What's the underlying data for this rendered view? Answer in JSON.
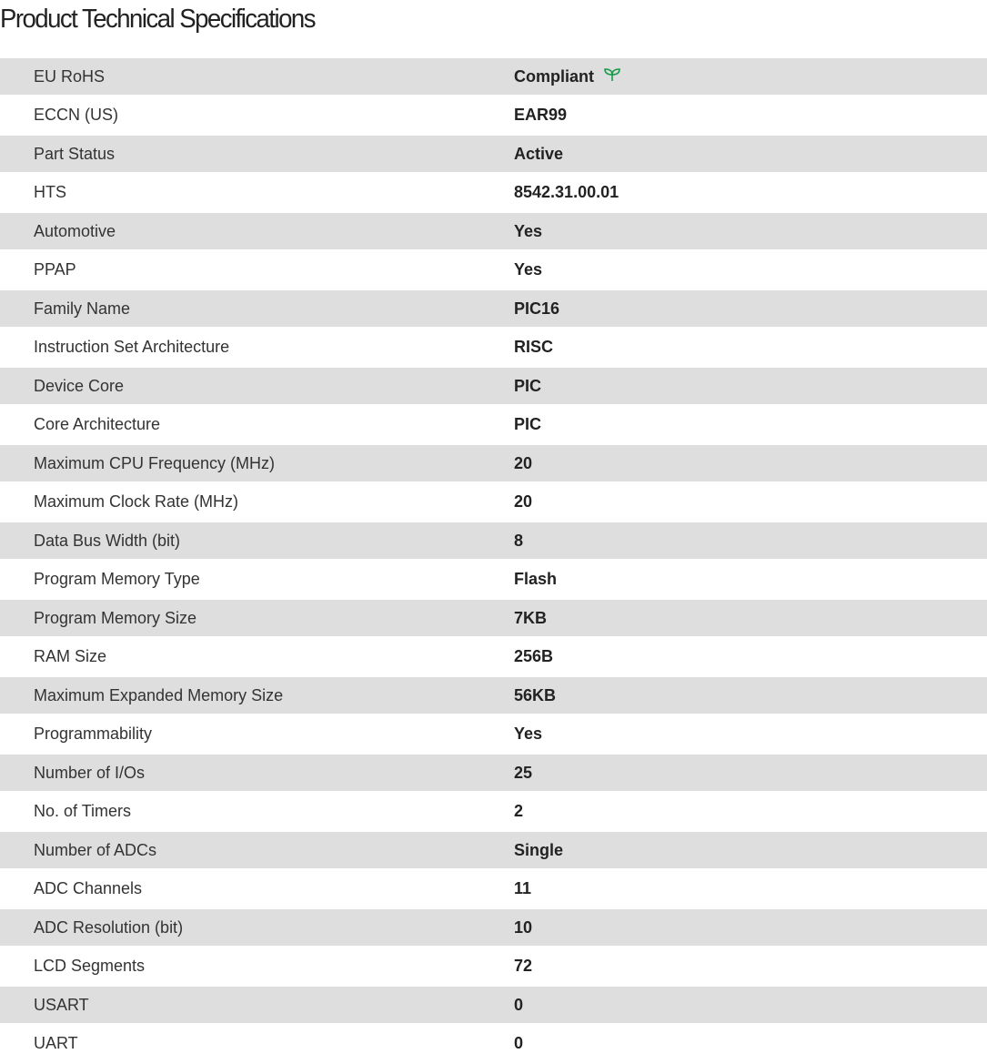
{
  "title": "Product Technical Specifications",
  "specs": [
    {
      "label": "EU RoHS",
      "value": "Compliant",
      "icon": "leaf-icon",
      "icon_color": "#1a9b4b"
    },
    {
      "label": "ECCN (US)",
      "value": "EAR99"
    },
    {
      "label": "Part Status",
      "value": "Active"
    },
    {
      "label": "HTS",
      "value": "8542.31.00.01"
    },
    {
      "label": "Automotive",
      "value": "Yes"
    },
    {
      "label": "PPAP",
      "value": "Yes"
    },
    {
      "label": "Family Name",
      "value": "PIC16"
    },
    {
      "label": "Instruction Set Architecture",
      "value": "RISC"
    },
    {
      "label": "Device Core",
      "value": "PIC"
    },
    {
      "label": "Core Architecture",
      "value": "PIC"
    },
    {
      "label": "Maximum CPU Frequency (MHz)",
      "value": "20"
    },
    {
      "label": "Maximum Clock Rate (MHz)",
      "value": "20"
    },
    {
      "label": "Data Bus Width (bit)",
      "value": "8"
    },
    {
      "label": "Program Memory Type",
      "value": "Flash"
    },
    {
      "label": "Program Memory Size",
      "value": "7KB"
    },
    {
      "label": "RAM Size",
      "value": "256B"
    },
    {
      "label": "Maximum Expanded Memory Size",
      "value": "56KB"
    },
    {
      "label": "Programmability",
      "value": "Yes"
    },
    {
      "label": "Number of I/Os",
      "value": "25"
    },
    {
      "label": "No. of Timers",
      "value": "2"
    },
    {
      "label": "Number of ADCs",
      "value": "Single"
    },
    {
      "label": "ADC Channels",
      "value": "11"
    },
    {
      "label": "ADC Resolution (bit)",
      "value": "10"
    },
    {
      "label": "LCD Segments",
      "value": "72"
    },
    {
      "label": "USART",
      "value": "0"
    },
    {
      "label": "UART",
      "value": "0"
    }
  ]
}
